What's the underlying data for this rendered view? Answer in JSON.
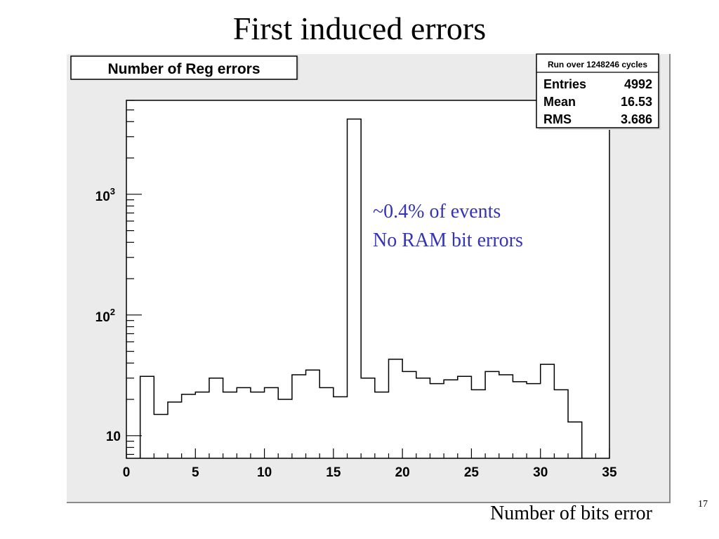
{
  "slide": {
    "title": "First induced errors",
    "x_caption": "Number of bits error",
    "page_number": "17"
  },
  "histogram": {
    "title_box": "Number of Reg errors",
    "stats": {
      "header": "Run over 1248246 cycles",
      "rows": [
        {
          "label": "Entries",
          "value": "4992"
        },
        {
          "label": "Mean",
          "value": "16.53"
        },
        {
          "label": "RMS",
          "value": "3.686"
        }
      ]
    },
    "annotation": [
      "~0.4% of events",
      "No RAM bit errors"
    ],
    "annotation_color": "#3333bb",
    "frame_color": "#000000",
    "canvas_color": "#ebebeb"
  },
  "chart_data": {
    "type": "bar",
    "title": "Number of Reg errors",
    "xlabel": "Number of bits error",
    "ylabel": "",
    "yscale": "log",
    "xlim": [
      0,
      35
    ],
    "ylim": [
      6.5,
      6000
    ],
    "bin_width": 1,
    "x_ticks": [
      "0",
      "5",
      "10",
      "15",
      "20",
      "25",
      "30",
      "35"
    ],
    "y_tick_labels": [
      {
        "value": 10,
        "base": "10",
        "exp": ""
      },
      {
        "value": 100,
        "base": "10",
        "exp": "2"
      },
      {
        "value": 1000,
        "base": "10",
        "exp": "3"
      }
    ],
    "bins": [
      {
        "x": 1,
        "y": 31
      },
      {
        "x": 2,
        "y": 15
      },
      {
        "x": 3,
        "y": 19
      },
      {
        "x": 4,
        "y": 22
      },
      {
        "x": 5,
        "y": 23
      },
      {
        "x": 6,
        "y": 30
      },
      {
        "x": 7,
        "y": 23
      },
      {
        "x": 8,
        "y": 25
      },
      {
        "x": 9,
        "y": 23
      },
      {
        "x": 10,
        "y": 25
      },
      {
        "x": 11,
        "y": 20
      },
      {
        "x": 12,
        "y": 32
      },
      {
        "x": 13,
        "y": 35
      },
      {
        "x": 14,
        "y": 25
      },
      {
        "x": 15,
        "y": 21
      },
      {
        "x": 16,
        "y": 4200
      },
      {
        "x": 17,
        "y": 30
      },
      {
        "x": 18,
        "y": 23
      },
      {
        "x": 19,
        "y": 43
      },
      {
        "x": 20,
        "y": 34
      },
      {
        "x": 21,
        "y": 30
      },
      {
        "x": 22,
        "y": 27
      },
      {
        "x": 23,
        "y": 29
      },
      {
        "x": 24,
        "y": 31
      },
      {
        "x": 25,
        "y": 24
      },
      {
        "x": 26,
        "y": 34
      },
      {
        "x": 27,
        "y": 32
      },
      {
        "x": 28,
        "y": 28
      },
      {
        "x": 29,
        "y": 27
      },
      {
        "x": 30,
        "y": 39
      },
      {
        "x": 31,
        "y": 24
      },
      {
        "x": 32,
        "y": 13
      }
    ]
  }
}
